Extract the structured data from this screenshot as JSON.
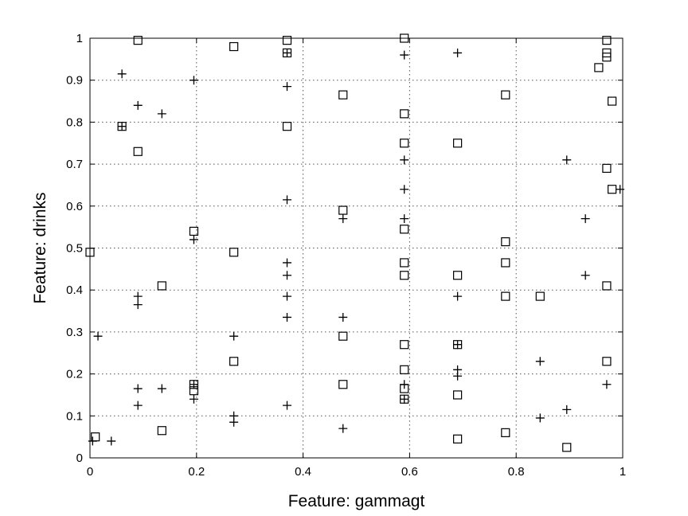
{
  "chart_data": {
    "type": "scatter",
    "title": "",
    "xlabel": "Feature: gammagt",
    "ylabel": "Feature: drinks",
    "xlim": [
      0,
      1
    ],
    "ylim": [
      0,
      1
    ],
    "xticks": [
      0,
      0.2,
      0.4,
      0.6,
      0.8,
      1
    ],
    "yticks": [
      0,
      0.1,
      0.2,
      0.3,
      0.4,
      0.5,
      0.6,
      0.7,
      0.8,
      0.9,
      1
    ],
    "xtick_labels": [
      "0",
      "0.2",
      "0.4",
      "0.6",
      "0.8",
      "1"
    ],
    "ytick_labels": [
      "0",
      "0.1",
      "0.2",
      "0.3",
      "0.4",
      "0.5",
      "0.6",
      "0.7",
      "0.8",
      "0.9",
      "1"
    ],
    "grid": true,
    "legend": "none",
    "series": [
      {
        "marker": "plus",
        "points": [
          [
            0.005,
            0.04
          ],
          [
            0.04,
            0.04
          ],
          [
            0.015,
            0.29
          ],
          [
            0.06,
            0.915
          ],
          [
            0.06,
            0.79
          ],
          [
            0.09,
            0.84
          ],
          [
            0.09,
            0.385
          ],
          [
            0.09,
            0.365
          ],
          [
            0.09,
            0.165
          ],
          [
            0.09,
            0.125
          ],
          [
            0.135,
            0.82
          ],
          [
            0.135,
            0.165
          ],
          [
            0.195,
            0.9
          ],
          [
            0.195,
            0.52
          ],
          [
            0.195,
            0.175
          ],
          [
            0.195,
            0.14
          ],
          [
            0.27,
            0.29
          ],
          [
            0.27,
            0.1
          ],
          [
            0.27,
            0.085
          ],
          [
            0.37,
            0.965
          ],
          [
            0.37,
            0.885
          ],
          [
            0.37,
            0.615
          ],
          [
            0.37,
            0.465
          ],
          [
            0.37,
            0.435
          ],
          [
            0.37,
            0.385
          ],
          [
            0.37,
            0.335
          ],
          [
            0.37,
            0.125
          ],
          [
            0.475,
            0.57
          ],
          [
            0.475,
            0.335
          ],
          [
            0.475,
            0.07
          ],
          [
            0.59,
            0.96
          ],
          [
            0.59,
            0.71
          ],
          [
            0.59,
            0.64
          ],
          [
            0.59,
            0.57
          ],
          [
            0.59,
            0.175
          ],
          [
            0.59,
            0.14
          ],
          [
            0.69,
            0.965
          ],
          [
            0.69,
            0.385
          ],
          [
            0.69,
            0.27
          ],
          [
            0.69,
            0.21
          ],
          [
            0.69,
            0.195
          ],
          [
            0.845,
            0.23
          ],
          [
            0.845,
            0.095
          ],
          [
            0.895,
            0.71
          ],
          [
            0.895,
            0.115
          ],
          [
            0.93,
            0.57
          ],
          [
            0.93,
            0.435
          ],
          [
            0.97,
            0.175
          ],
          [
            0.995,
            0.64
          ]
        ]
      },
      {
        "marker": "square",
        "points": [
          [
            0.01,
            0.05
          ],
          [
            0.0,
            0.49
          ],
          [
            0.06,
            0.79
          ],
          [
            0.09,
            0.995
          ],
          [
            0.09,
            0.73
          ],
          [
            0.135,
            0.41
          ],
          [
            0.135,
            0.065
          ],
          [
            0.195,
            0.54
          ],
          [
            0.195,
            0.175
          ],
          [
            0.195,
            0.16
          ],
          [
            0.27,
            0.98
          ],
          [
            0.27,
            0.49
          ],
          [
            0.27,
            0.23
          ],
          [
            0.37,
            0.995
          ],
          [
            0.37,
            0.965
          ],
          [
            0.37,
            0.79
          ],
          [
            0.475,
            0.865
          ],
          [
            0.475,
            0.59
          ],
          [
            0.475,
            0.29
          ],
          [
            0.475,
            0.175
          ],
          [
            0.59,
            1.0
          ],
          [
            0.59,
            0.82
          ],
          [
            0.59,
            0.75
          ],
          [
            0.59,
            0.545
          ],
          [
            0.59,
            0.465
          ],
          [
            0.59,
            0.435
          ],
          [
            0.59,
            0.27
          ],
          [
            0.59,
            0.21
          ],
          [
            0.59,
            0.165
          ],
          [
            0.59,
            0.14
          ],
          [
            0.69,
            0.75
          ],
          [
            0.69,
            0.435
          ],
          [
            0.69,
            0.27
          ],
          [
            0.69,
            0.15
          ],
          [
            0.69,
            0.045
          ],
          [
            0.78,
            0.865
          ],
          [
            0.78,
            0.515
          ],
          [
            0.78,
            0.465
          ],
          [
            0.78,
            0.385
          ],
          [
            0.78,
            0.06
          ],
          [
            0.845,
            0.385
          ],
          [
            0.895,
            0.025
          ],
          [
            0.955,
            0.93
          ],
          [
            0.97,
            0.995
          ],
          [
            0.97,
            0.965
          ],
          [
            0.97,
            0.955
          ],
          [
            0.97,
            0.69
          ],
          [
            0.97,
            0.41
          ],
          [
            0.97,
            0.23
          ],
          [
            0.98,
            0.85
          ],
          [
            0.98,
            0.64
          ]
        ]
      }
    ]
  }
}
